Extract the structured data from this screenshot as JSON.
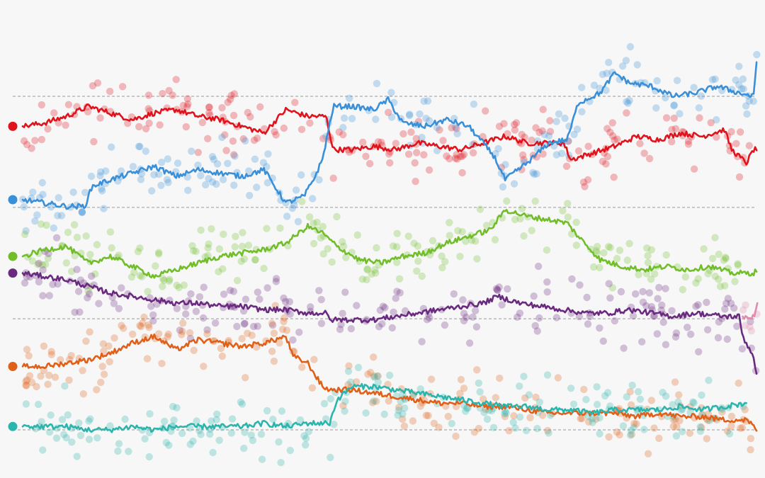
{
  "chart_data": {
    "type": "line",
    "title": "",
    "xlabel": "",
    "ylabel": "",
    "xlim": [
      0,
      1000
    ],
    "ylim": [
      0,
      100
    ],
    "grid": true,
    "gridlines_y": [
      0,
      33.3,
      66.7,
      100
    ],
    "legend": "none",
    "series": [
      {
        "color": "#e0131c",
        "values": [
          [
            0,
            91
          ],
          [
            30,
            92
          ],
          [
            60,
            94
          ],
          [
            90,
            97
          ],
          [
            120,
            95
          ],
          [
            150,
            93
          ],
          [
            180,
            95
          ],
          [
            210,
            96
          ],
          [
            240,
            94
          ],
          [
            270,
            93
          ],
          [
            300,
            91
          ],
          [
            330,
            89
          ],
          [
            360,
            96
          ],
          [
            390,
            94
          ],
          [
            415,
            94
          ],
          [
            425,
            84
          ],
          [
            450,
            84
          ],
          [
            480,
            85
          ],
          [
            510,
            84
          ],
          [
            540,
            86
          ],
          [
            570,
            85
          ],
          [
            600,
            84
          ],
          [
            630,
            86
          ],
          [
            660,
            88
          ],
          [
            690,
            86
          ],
          [
            720,
            86
          ],
          [
            740,
            86
          ],
          [
            750,
            81
          ],
          [
            780,
            83
          ],
          [
            810,
            85
          ],
          [
            840,
            88
          ],
          [
            870,
            87
          ],
          [
            900,
            89
          ],
          [
            930,
            88
          ],
          [
            960,
            90
          ],
          [
            970,
            84
          ],
          [
            990,
            80
          ],
          [
            1000,
            84
          ],
          [
            1005,
            84
          ]
        ]
      },
      {
        "color": "#3a8fd9",
        "values": [
          [
            0,
            69
          ],
          [
            30,
            68
          ],
          [
            60,
            67
          ],
          [
            85,
            67
          ],
          [
            95,
            73
          ],
          [
            120,
            75
          ],
          [
            150,
            77
          ],
          [
            180,
            79
          ],
          [
            210,
            76
          ],
          [
            240,
            78
          ],
          [
            270,
            77
          ],
          [
            300,
            76
          ],
          [
            330,
            78
          ],
          [
            345,
            73
          ],
          [
            360,
            68
          ],
          [
            385,
            70
          ],
          [
            400,
            76
          ],
          [
            410,
            81
          ],
          [
            425,
            97
          ],
          [
            450,
            97
          ],
          [
            480,
            96
          ],
          [
            500,
            99
          ],
          [
            520,
            92
          ],
          [
            550,
            91
          ],
          [
            580,
            93
          ],
          [
            610,
            91
          ],
          [
            630,
            86
          ],
          [
            645,
            82
          ],
          [
            660,
            75
          ],
          [
            690,
            80
          ],
          [
            720,
            86
          ],
          [
            745,
            87
          ],
          [
            760,
            98
          ],
          [
            790,
            101
          ],
          [
            810,
            107
          ],
          [
            830,
            104
          ],
          [
            860,
            103
          ],
          [
            890,
            100
          ],
          [
            920,
            101
          ],
          [
            950,
            103
          ],
          [
            980,
            101
          ],
          [
            1000,
            100
          ],
          [
            1005,
            113
          ]
        ]
      },
      {
        "color": "#71be2a",
        "values": [
          [
            0,
            52
          ],
          [
            30,
            54
          ],
          [
            60,
            55
          ],
          [
            90,
            50
          ],
          [
            120,
            52
          ],
          [
            150,
            49
          ],
          [
            180,
            46
          ],
          [
            210,
            48
          ],
          [
            240,
            50
          ],
          [
            270,
            52
          ],
          [
            300,
            53
          ],
          [
            330,
            54
          ],
          [
            360,
            56
          ],
          [
            390,
            61
          ],
          [
            410,
            59
          ],
          [
            430,
            55
          ],
          [
            460,
            51
          ],
          [
            490,
            50
          ],
          [
            520,
            52
          ],
          [
            550,
            53
          ],
          [
            580,
            56
          ],
          [
            610,
            58
          ],
          [
            640,
            60
          ],
          [
            660,
            66
          ],
          [
            690,
            64
          ],
          [
            720,
            63
          ],
          [
            745,
            62
          ],
          [
            760,
            58
          ],
          [
            790,
            51
          ],
          [
            820,
            49
          ],
          [
            850,
            48
          ],
          [
            880,
            49
          ],
          [
            910,
            48
          ],
          [
            940,
            49
          ],
          [
            970,
            47
          ],
          [
            1000,
            47
          ],
          [
            1005,
            48
          ]
        ]
      },
      {
        "color": "#6a2a80",
        "values": [
          [
            0,
            47
          ],
          [
            30,
            46
          ],
          [
            60,
            45
          ],
          [
            90,
            43
          ],
          [
            120,
            41
          ],
          [
            150,
            40
          ],
          [
            180,
            39
          ],
          [
            210,
            38
          ],
          [
            240,
            38
          ],
          [
            270,
            37
          ],
          [
            300,
            37
          ],
          [
            330,
            36
          ],
          [
            360,
            36
          ],
          [
            390,
            35
          ],
          [
            415,
            35
          ],
          [
            420,
            33
          ],
          [
            450,
            33
          ],
          [
            480,
            33
          ],
          [
            510,
            34
          ],
          [
            540,
            35
          ],
          [
            570,
            36
          ],
          [
            600,
            37
          ],
          [
            630,
            38
          ],
          [
            650,
            40
          ],
          [
            680,
            38
          ],
          [
            710,
            37
          ],
          [
            740,
            36
          ],
          [
            770,
            35
          ],
          [
            800,
            35
          ],
          [
            830,
            36
          ],
          [
            860,
            35
          ],
          [
            890,
            34
          ],
          [
            920,
            35
          ],
          [
            960,
            34
          ],
          [
            980,
            34
          ],
          [
            985,
            28
          ],
          [
            1000,
            22
          ],
          [
            1005,
            15
          ]
        ]
      },
      {
        "color": "#e06019",
        "values": [
          [
            0,
            19
          ],
          [
            30,
            19
          ],
          [
            60,
            20
          ],
          [
            90,
            21
          ],
          [
            120,
            23
          ],
          [
            150,
            26
          ],
          [
            180,
            28
          ],
          [
            210,
            24
          ],
          [
            240,
            27
          ],
          [
            270,
            26
          ],
          [
            300,
            25
          ],
          [
            330,
            26
          ],
          [
            360,
            28
          ],
          [
            370,
            22
          ],
          [
            390,
            20
          ],
          [
            410,
            13
          ],
          [
            420,
            12
          ],
          [
            450,
            12
          ],
          [
            480,
            11
          ],
          [
            510,
            10
          ],
          [
            540,
            9
          ],
          [
            570,
            8
          ],
          [
            600,
            8
          ],
          [
            630,
            7
          ],
          [
            660,
            7
          ],
          [
            690,
            6
          ],
          [
            720,
            5
          ],
          [
            750,
            5
          ],
          [
            780,
            5
          ],
          [
            810,
            5
          ],
          [
            840,
            4
          ],
          [
            870,
            5
          ],
          [
            900,
            4
          ],
          [
            930,
            4
          ],
          [
            960,
            3
          ],
          [
            990,
            3
          ],
          [
            1005,
            0
          ]
        ]
      },
      {
        "color": "#2bb5ad",
        "values": [
          [
            0,
            1
          ],
          [
            30,
            1
          ],
          [
            60,
            1
          ],
          [
            90,
            0
          ],
          [
            120,
            0
          ],
          [
            150,
            1
          ],
          [
            180,
            0
          ],
          [
            210,
            1
          ],
          [
            240,
            1
          ],
          [
            270,
            1
          ],
          [
            300,
            1
          ],
          [
            330,
            2
          ],
          [
            360,
            1
          ],
          [
            390,
            2
          ],
          [
            420,
            2
          ],
          [
            430,
            9
          ],
          [
            450,
            13
          ],
          [
            480,
            13
          ],
          [
            510,
            12
          ],
          [
            540,
            11
          ],
          [
            570,
            10
          ],
          [
            600,
            9
          ],
          [
            630,
            8
          ],
          [
            660,
            7
          ],
          [
            690,
            7
          ],
          [
            720,
            6
          ],
          [
            750,
            6
          ],
          [
            780,
            5
          ],
          [
            810,
            6
          ],
          [
            840,
            6
          ],
          [
            870,
            6
          ],
          [
            900,
            7
          ],
          [
            930,
            6
          ],
          [
            960,
            7
          ],
          [
            990,
            8
          ]
        ]
      },
      {
        "color": "#e08aae",
        "values": [
          [
            985,
            34
          ],
          [
            1000,
            34
          ],
          [
            1005,
            38
          ]
        ]
      }
    ],
    "series_end_markers": [
      "#e0131c",
      "#3a8fd9",
      "#71be2a",
      "#6a2a80",
      "#e06019",
      "#2bb5ad"
    ]
  }
}
